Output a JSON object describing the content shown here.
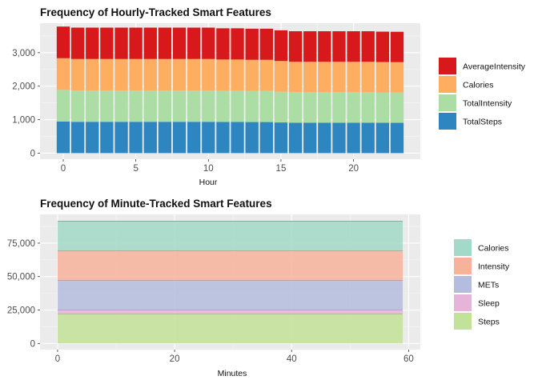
{
  "chart_data": [
    {
      "type": "bar",
      "stacked": true,
      "title": "Frequency of Hourly-Tracked Smart Features",
      "xlabel": "Hour",
      "ylabel": "",
      "x": [
        0,
        1,
        2,
        3,
        4,
        5,
        6,
        7,
        8,
        9,
        10,
        11,
        12,
        13,
        14,
        15,
        16,
        17,
        18,
        19,
        20,
        21,
        22,
        23
      ],
      "xticks": [
        0,
        5,
        10,
        15,
        20
      ],
      "xlim": [
        -1.6,
        24.6
      ],
      "ylim": [
        -180,
        3880
      ],
      "yticks": [
        0,
        1000,
        2000,
        3000
      ],
      "ytick_labels": [
        "0",
        "1,000",
        "2,000",
        "3,000"
      ],
      "grid": true,
      "legend_position": "right",
      "series": [
        {
          "name": "TotalSteps",
          "color": "#2e86c1",
          "values": [
            945,
            937,
            937,
            937,
            937,
            937,
            937,
            937,
            937,
            937,
            937,
            932,
            932,
            929,
            929,
            917,
            910,
            910,
            910,
            910,
            910,
            910,
            907,
            906
          ]
        },
        {
          "name": "TotalIntensity",
          "color": "#abdda4",
          "values": [
            945,
            937,
            937,
            937,
            937,
            937,
            937,
            937,
            937,
            937,
            937,
            932,
            932,
            929,
            929,
            917,
            910,
            910,
            910,
            910,
            910,
            910,
            907,
            906
          ]
        },
        {
          "name": "Calories",
          "color": "#fdae61",
          "values": [
            945,
            937,
            937,
            937,
            937,
            937,
            937,
            937,
            937,
            937,
            937,
            932,
            932,
            929,
            929,
            917,
            910,
            910,
            910,
            910,
            910,
            910,
            907,
            906
          ]
        },
        {
          "name": "AverageIntensity",
          "color": "#d7191c",
          "values": [
            945,
            937,
            937,
            937,
            937,
            937,
            937,
            937,
            937,
            937,
            937,
            932,
            932,
            929,
            929,
            917,
            910,
            910,
            910,
            910,
            910,
            910,
            907,
            906
          ]
        }
      ],
      "legend_order": [
        "AverageIntensity",
        "Calories",
        "TotalIntensity",
        "TotalSteps"
      ]
    },
    {
      "type": "area",
      "stacked": true,
      "title": "Frequency of Minute-Tracked Smart Features",
      "xlabel": "Minutes",
      "ylabel": "",
      "x_range": [
        0,
        59
      ],
      "xticks": [
        0,
        20,
        40,
        60
      ],
      "xlim": [
        -3,
        62
      ],
      "ylim": [
        -4600,
        96500
      ],
      "yticks": [
        0,
        25000,
        50000,
        75000
      ],
      "ytick_labels": [
        "0",
        "25,000",
        "50,000",
        "75,000"
      ],
      "grid": true,
      "legend_position": "right",
      "series": [
        {
          "name": "Steps",
          "color": "#c2e297",
          "value": 22100
        },
        {
          "name": "Sleep",
          "color": "#e6b4da",
          "value": 3000
        },
        {
          "name": "METs",
          "color": "#b5bdde",
          "value": 22100
        },
        {
          "name": "Intensity",
          "color": "#f7b39a",
          "value": 22100
        },
        {
          "name": "Calories",
          "color": "#a2d9c8",
          "value": 22100
        }
      ],
      "legend_order": [
        "Calories",
        "Intensity",
        "METs",
        "Sleep",
        "Steps"
      ]
    }
  ]
}
